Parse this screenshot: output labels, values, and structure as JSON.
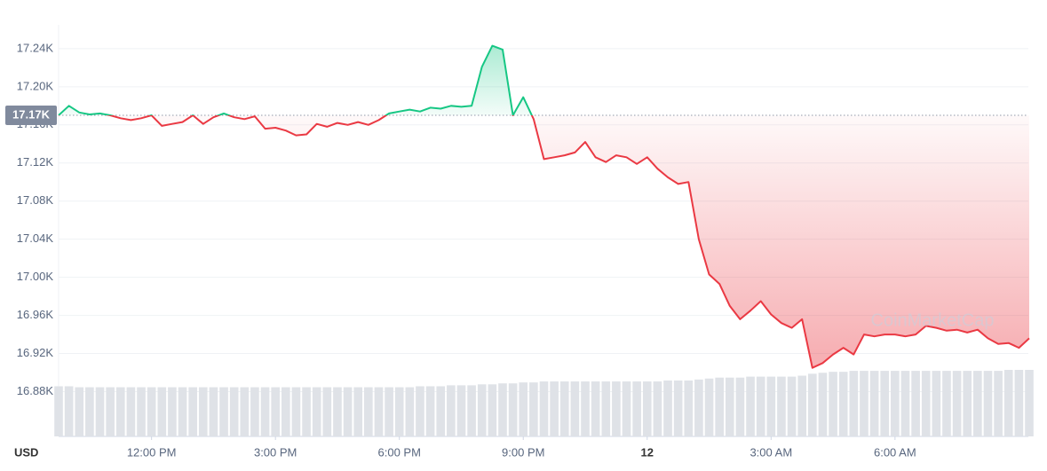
{
  "chart_data": {
    "type": "line",
    "categories": [
      null,
      null,
      null,
      null,
      null,
      null,
      null,
      null,
      null,
      "12:00 PM",
      null,
      null,
      null,
      null,
      null,
      null,
      null,
      null,
      null,
      null,
      null,
      "3:00 PM",
      null,
      null,
      null,
      null,
      null,
      null,
      null,
      null,
      null,
      null,
      null,
      "6:00 PM",
      null,
      null,
      null,
      null,
      null,
      null,
      null,
      null,
      null,
      null,
      null,
      "9:00 PM",
      null,
      null,
      null,
      null,
      null,
      null,
      null,
      null,
      null,
      null,
      null,
      "12",
      null,
      null,
      null,
      null,
      null,
      null,
      null,
      null,
      null,
      null,
      null,
      "3:00 AM",
      null,
      null,
      null,
      null,
      null,
      null,
      null,
      null,
      null,
      null,
      null,
      "6:00 AM",
      null,
      null,
      null,
      null,
      null,
      null,
      null,
      null,
      null,
      null,
      null,
      null,
      null
    ],
    "series": [
      {
        "values": [
          17170,
          17180,
          17173,
          17171,
          17172,
          17170,
          17167,
          17165,
          17167,
          17170,
          17159,
          17161,
          17163,
          17170,
          17161,
          17168,
          17172,
          17168,
          17166,
          17169,
          17156,
          17157,
          17154,
          17149,
          17150,
          17161,
          17158,
          17162,
          17160,
          17163,
          17160,
          17165,
          17172,
          17174,
          17176,
          17174,
          17178,
          17177,
          17180,
          17179,
          17180,
          17221,
          17243,
          17239,
          17170,
          17189,
          17166,
          17124,
          17126,
          17128,
          17131,
          17142,
          17126,
          17121,
          17128,
          17126,
          17119,
          17126,
          17114,
          17105,
          17098,
          17100,
          17040,
          17003,
          16993,
          16970,
          16956,
          16965,
          16975,
          16961,
          16952,
          16947,
          16956,
          16905,
          16910,
          16919,
          16926,
          16919,
          16940,
          16938,
          16940,
          16940,
          16938,
          16940,
          16949,
          16947,
          16944,
          16945,
          16942,
          16945,
          16936,
          16930,
          16931,
          16926,
          16936
        ],
        "up_color": "#16c784",
        "down_color": "#ea3943"
      }
    ],
    "volume": {
      "color": "#dfe2e7",
      "values": [
        52,
        52,
        51,
        51,
        51,
        51,
        51,
        51,
        51,
        51,
        51,
        51,
        51,
        51,
        51,
        51,
        51,
        51,
        51,
        51,
        51,
        51,
        51,
        51,
        51,
        51,
        51,
        51,
        51,
        51,
        51,
        51,
        51,
        51,
        51,
        52,
        52,
        52,
        53,
        53,
        53,
        54,
        54,
        55,
        55,
        56,
        56,
        57,
        57,
        57,
        57,
        57,
        57,
        57,
        57,
        57,
        57,
        57,
        57,
        58,
        58,
        58,
        59,
        60,
        61,
        61,
        61,
        62,
        62,
        62,
        62,
        62,
        63,
        65,
        66,
        67,
        67,
        68,
        68,
        68,
        68,
        68,
        68,
        68,
        68,
        68,
        68,
        68,
        68,
        68,
        68,
        68,
        69,
        69,
        69
      ]
    },
    "reference": {
      "value": 17170,
      "label": "17.17K"
    },
    "ylim": [
      16833,
      17265
    ],
    "yticks": [
      {
        "value": 16880,
        "label": "16.88K"
      },
      {
        "value": 16920,
        "label": "16.92K"
      },
      {
        "value": 16960,
        "label": "16.96K"
      },
      {
        "value": 17000,
        "label": "17.00K"
      },
      {
        "value": 17040,
        "label": "17.04K"
      },
      {
        "value": 17080,
        "label": "17.08K"
      },
      {
        "value": 17120,
        "label": "17.12K"
      },
      {
        "value": 17160,
        "label": "17.16K"
      },
      {
        "value": 17200,
        "label": "17.20K"
      },
      {
        "value": 17240,
        "label": "17.24K"
      }
    ],
    "grid": true,
    "currency_label": "USD",
    "watermark": "CoinMarketCap"
  }
}
